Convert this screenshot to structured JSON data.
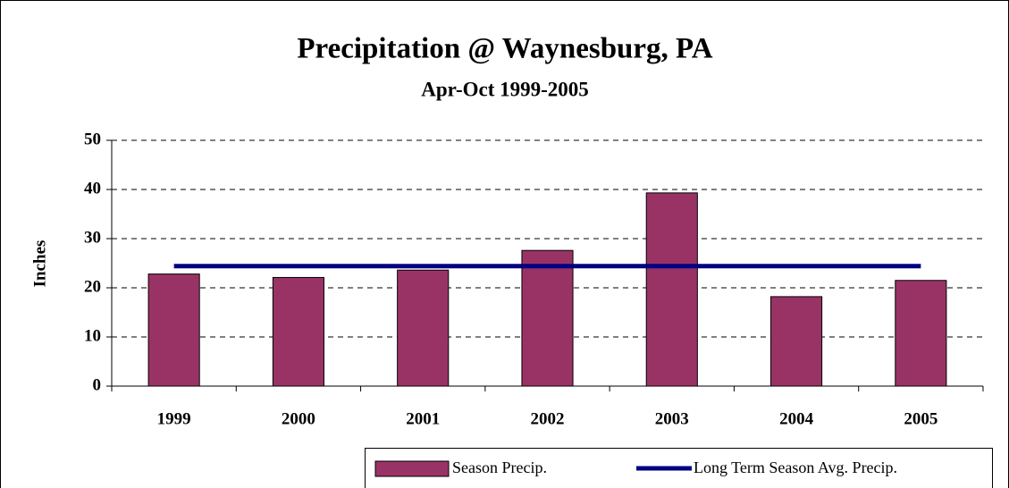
{
  "chart_data": {
    "type": "bar",
    "title": "Precipitation @ Waynesburg, PA",
    "subtitle": "Apr-Oct 1999-2005",
    "y_label": "Inches",
    "categories": [
      "1999",
      "2000",
      "2001",
      "2002",
      "2003",
      "2004",
      "2005"
    ],
    "series": [
      {
        "name": "Season Precip.",
        "type": "bar",
        "color": "#993366",
        "values": [
          22.8,
          22.1,
          23.6,
          27.6,
          39.3,
          18.2,
          21.5
        ]
      },
      {
        "name": "Long Term Season Avg. Precip.",
        "type": "line",
        "color": "#000080",
        "values": [
          24.4,
          24.4,
          24.4,
          24.4,
          24.4,
          24.4,
          24.4
        ]
      }
    ],
    "ylim": [
      0,
      50
    ],
    "yticks": [
      0,
      10,
      20,
      30,
      40,
      50
    ],
    "grid": true,
    "legend": "bottom"
  }
}
